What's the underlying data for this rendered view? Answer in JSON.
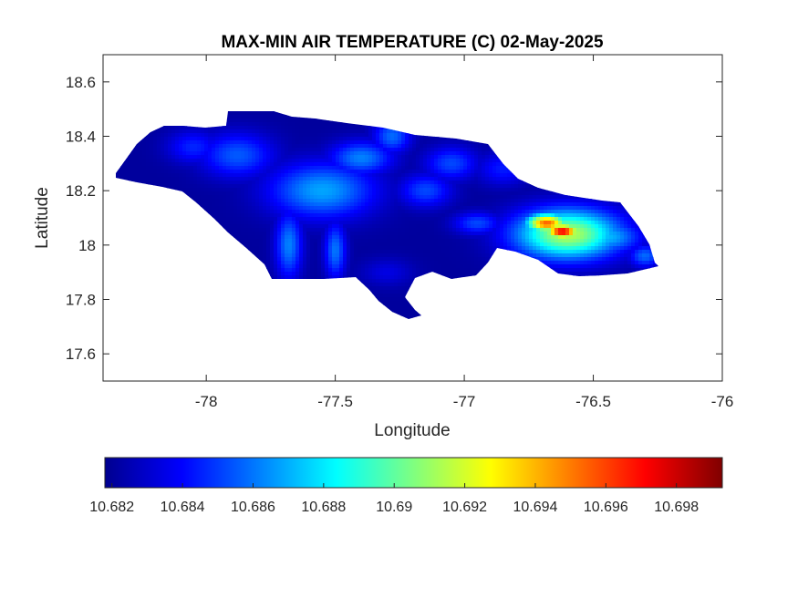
{
  "chart_data": {
    "type": "heatmap",
    "title": "MAX-MIN AIR TEMPERATURE (C) 02-May-2025",
    "xlabel": "Longitude",
    "ylabel": "Latitude",
    "xlim": [
      -78.4,
      -76
    ],
    "ylim": [
      17.5,
      18.7
    ],
    "x_ticks": [
      {
        "value": -78,
        "label": "-78"
      },
      {
        "value": -77.5,
        "label": "-77.5"
      },
      {
        "value": -77,
        "label": "-77"
      },
      {
        "value": -76.5,
        "label": "-76.5"
      },
      {
        "value": -76,
        "label": "-76"
      }
    ],
    "y_ticks": [
      {
        "value": 17.6,
        "label": "17.6"
      },
      {
        "value": 17.8,
        "label": "17.8"
      },
      {
        "value": 18,
        "label": "18"
      },
      {
        "value": 18.2,
        "label": "18.2"
      },
      {
        "value": 18.4,
        "label": "18.4"
      },
      {
        "value": 18.6,
        "label": "18.6"
      }
    ],
    "grid": false,
    "colormap": "jet",
    "colorbar": {
      "placement": "bottom",
      "range": [
        10.6818,
        10.6993
      ],
      "ticks": [
        {
          "value": 10.682,
          "label": "10.682"
        },
        {
          "value": 10.684,
          "label": "10.684"
        },
        {
          "value": 10.686,
          "label": "10.686"
        },
        {
          "value": 10.688,
          "label": "10.688"
        },
        {
          "value": 10.69,
          "label": "10.69"
        },
        {
          "value": 10.692,
          "label": "10.692"
        },
        {
          "value": 10.694,
          "label": "10.694"
        },
        {
          "value": 10.696,
          "label": "10.696"
        },
        {
          "value": 10.698,
          "label": "10.698"
        }
      ]
    },
    "base_value": 10.6823,
    "hotspots": [
      {
        "lon": -76.62,
        "lat": 18.05,
        "value": 10.6975,
        "spread_lon": 0.07,
        "spread_lat": 0.03
      },
      {
        "lon": -76.68,
        "lat": 18.08,
        "value": 10.6955,
        "spread_lon": 0.08,
        "spread_lat": 0.035
      },
      {
        "lon": -76.6,
        "lat": 18.04,
        "value": 10.6915,
        "spread_lon": 0.2,
        "spread_lat": 0.09
      },
      {
        "lon": -76.45,
        "lat": 18.03,
        "value": 10.6872,
        "spread_lon": 0.13,
        "spread_lat": 0.06
      },
      {
        "lon": -76.3,
        "lat": 17.96,
        "value": 10.6858,
        "spread_lon": 0.06,
        "spread_lat": 0.04
      },
      {
        "lon": -77.55,
        "lat": 18.2,
        "value": 10.6868,
        "spread_lon": 0.2,
        "spread_lat": 0.1
      },
      {
        "lon": -77.4,
        "lat": 18.32,
        "value": 10.6862,
        "spread_lon": 0.12,
        "spread_lat": 0.06
      },
      {
        "lon": -77.28,
        "lat": 18.4,
        "value": 10.6858,
        "spread_lon": 0.07,
        "spread_lat": 0.06
      },
      {
        "lon": -77.88,
        "lat": 18.33,
        "value": 10.6855,
        "spread_lon": 0.14,
        "spread_lat": 0.08
      },
      {
        "lon": -78.05,
        "lat": 18.36,
        "value": 10.6846,
        "spread_lon": 0.1,
        "spread_lat": 0.06
      },
      {
        "lon": -77.68,
        "lat": 18.0,
        "value": 10.6862,
        "spread_lon": 0.05,
        "spread_lat": 0.12
      },
      {
        "lon": -77.5,
        "lat": 17.98,
        "value": 10.686,
        "spread_lon": 0.04,
        "spread_lat": 0.1
      },
      {
        "lon": -77.15,
        "lat": 18.2,
        "value": 10.6852,
        "spread_lon": 0.1,
        "spread_lat": 0.06
      },
      {
        "lon": -77.05,
        "lat": 18.3,
        "value": 10.6852,
        "spread_lon": 0.1,
        "spread_lat": 0.06
      },
      {
        "lon": -76.95,
        "lat": 18.08,
        "value": 10.6852,
        "spread_lon": 0.09,
        "spread_lat": 0.04
      },
      {
        "lon": -77.3,
        "lat": 17.9,
        "value": 10.6835,
        "spread_lon": 0.1,
        "spread_lat": 0.05
      },
      {
        "lon": -76.85,
        "lat": 18.28,
        "value": 10.6844,
        "spread_lon": 0.1,
        "spread_lat": 0.06
      }
    ]
  }
}
